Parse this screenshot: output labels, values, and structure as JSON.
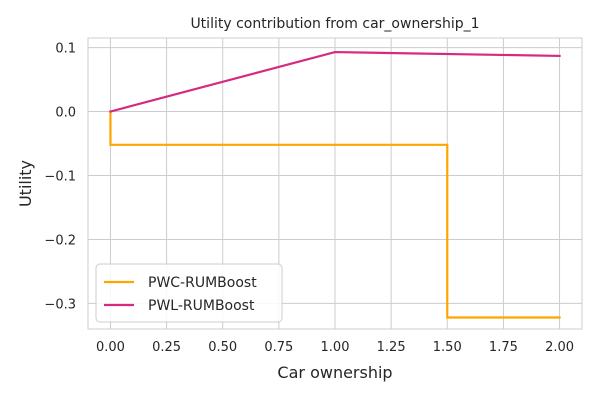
{
  "chart_data": {
    "type": "line",
    "title": "Utility contribution from car_ownership_1",
    "xlabel": "Car ownership",
    "ylabel": "Utility",
    "xlim": [
      -0.1,
      2.1
    ],
    "ylim": [
      -0.34,
      0.115
    ],
    "xticks": [
      0.0,
      0.25,
      0.5,
      0.75,
      1.0,
      1.25,
      1.5,
      1.75,
      2.0
    ],
    "xtick_labels": [
      "0.00",
      "0.25",
      "0.50",
      "0.75",
      "1.00",
      "1.25",
      "1.50",
      "1.75",
      "2.00"
    ],
    "yticks": [
      0.1,
      0.0,
      -0.1,
      -0.2,
      -0.3
    ],
    "ytick_labels": [
      "0.1",
      "0.0",
      "−0.1",
      "−0.2",
      "−0.3"
    ],
    "grid": true,
    "legend_position": "lower-left",
    "series": [
      {
        "name": "PWC-RUMBoost",
        "color": "#FFA500",
        "x": [
          0.0,
          0.0,
          1.5,
          1.5,
          2.0
        ],
        "y": [
          0.0,
          -0.052,
          -0.052,
          -0.322,
          -0.322
        ]
      },
      {
        "name": "PWL-RUMBoost",
        "color": "#D62A7E",
        "x": [
          0.0,
          1.0,
          2.0
        ],
        "y": [
          0.0,
          0.093,
          0.087
        ]
      }
    ]
  }
}
